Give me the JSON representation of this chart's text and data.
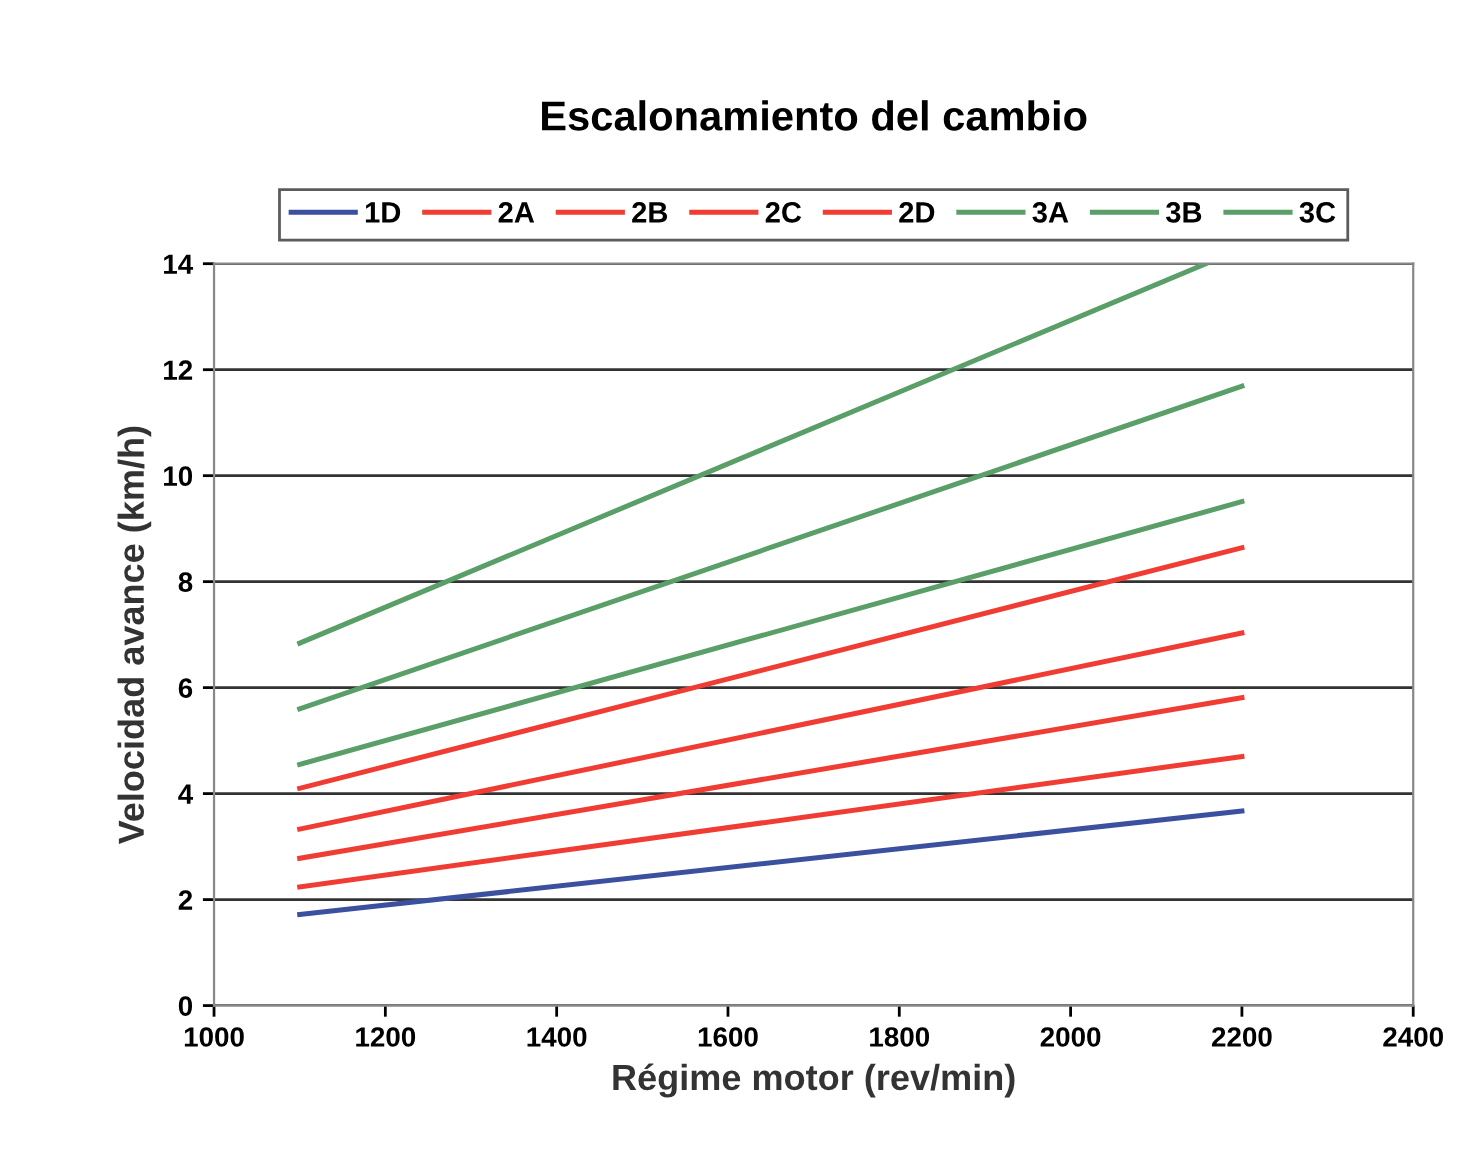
{
  "chart_data": {
    "type": "line",
    "title": "Escalonamiento del cambio",
    "xlabel": "Régime motor (rev/min)",
    "ylabel": "Velocidad avance (km/h)",
    "x": [
      1100,
      2200
    ],
    "series": [
      {
        "name": "1D",
        "color": "#3c50a0",
        "values": [
          1.72,
          3.67
        ]
      },
      {
        "name": "2A",
        "color": "#f03c32",
        "values": [
          2.24,
          4.7
        ]
      },
      {
        "name": "2B",
        "color": "#f03c32",
        "values": [
          2.78,
          5.81
        ]
      },
      {
        "name": "2C",
        "color": "#f03c32",
        "values": [
          3.33,
          7.03
        ]
      },
      {
        "name": "2D",
        "color": "#f03c32",
        "values": [
          4.1,
          8.64
        ]
      },
      {
        "name": "3A",
        "color": "#5a9e68",
        "values": [
          4.55,
          9.51
        ]
      },
      {
        "name": "3B",
        "color": "#5a9e68",
        "values": [
          5.6,
          11.69
        ]
      },
      {
        "name": "3C",
        "color": "#5a9e68",
        "x": [
          1100,
          2158
        ],
        "values": [
          6.84,
          14
        ]
      }
    ],
    "xlim": [
      1000,
      2400
    ],
    "xticks": [
      1000,
      1200,
      1400,
      1600,
      1800,
      2000,
      2200,
      2400
    ],
    "ylim": [
      0,
      14
    ],
    "yticks": [
      0,
      2,
      4,
      6,
      8,
      10,
      12,
      14
    ],
    "grid": "y",
    "legend": "top",
    "marker": "none",
    "line_style": "solid"
  }
}
